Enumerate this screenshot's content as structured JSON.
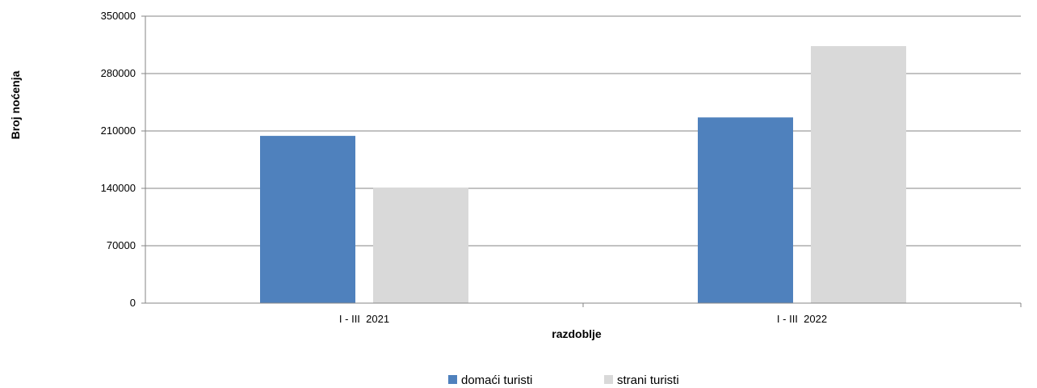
{
  "chart_data": {
    "type": "bar",
    "title": "",
    "xlabel": "razdoblje",
    "ylabel": "Broj noćenja",
    "categories": [
      "I - III  2021",
      "I - III  2022"
    ],
    "series": [
      {
        "name": "domaći turisti",
        "color": "#4F81BD",
        "values": [
          204000,
          226500
        ]
      },
      {
        "name": "strani turisti",
        "color": "#D9D9D9",
        "values": [
          141000,
          313500
        ]
      }
    ],
    "ylim": [
      0,
      350000
    ],
    "yticks": [
      0,
      70000,
      140000,
      210000,
      280000,
      350000
    ],
    "grid": true,
    "legend": "bottom-center"
  }
}
